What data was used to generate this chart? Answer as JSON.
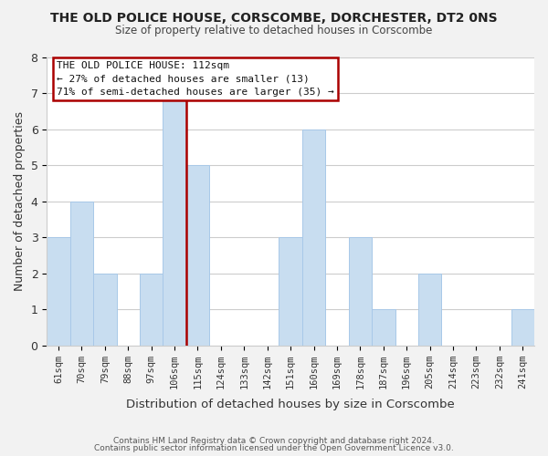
{
  "title": "THE OLD POLICE HOUSE, CORSCOMBE, DORCHESTER, DT2 0NS",
  "subtitle": "Size of property relative to detached houses in Corscombe",
  "xlabel": "Distribution of detached houses by size in Corscombe",
  "ylabel": "Number of detached properties",
  "bin_labels": [
    "61sqm",
    "70sqm",
    "79sqm",
    "88sqm",
    "97sqm",
    "106sqm",
    "115sqm",
    "124sqm",
    "133sqm",
    "142sqm",
    "151sqm",
    "160sqm",
    "169sqm",
    "178sqm",
    "187sqm",
    "196sqm",
    "205sqm",
    "214sqm",
    "223sqm",
    "232sqm",
    "241sqm"
  ],
  "bar_heights": [
    3,
    4,
    2,
    0,
    2,
    7,
    5,
    0,
    0,
    0,
    3,
    6,
    0,
    3,
    1,
    0,
    2,
    0,
    0,
    0,
    1
  ],
  "highlight_index": 5,
  "bar_color": "#c8ddf0",
  "bar_edge_color": "#a8c8e8",
  "highlight_line_color": "#aa0000",
  "ylim": [
    0,
    8
  ],
  "yticks": [
    0,
    1,
    2,
    3,
    4,
    5,
    6,
    7,
    8
  ],
  "annotation_title": "THE OLD POLICE HOUSE: 112sqm",
  "annotation_line1": "← 27% of detached houses are smaller (13)",
  "annotation_line2": "71% of semi-detached houses are larger (35) →",
  "footer1": "Contains HM Land Registry data © Crown copyright and database right 2024.",
  "footer2": "Contains public sector information licensed under the Open Government Licence v3.0.",
  "background_color": "#f2f2f2",
  "plot_bg_color": "#ffffff",
  "grid_color": "#cccccc"
}
